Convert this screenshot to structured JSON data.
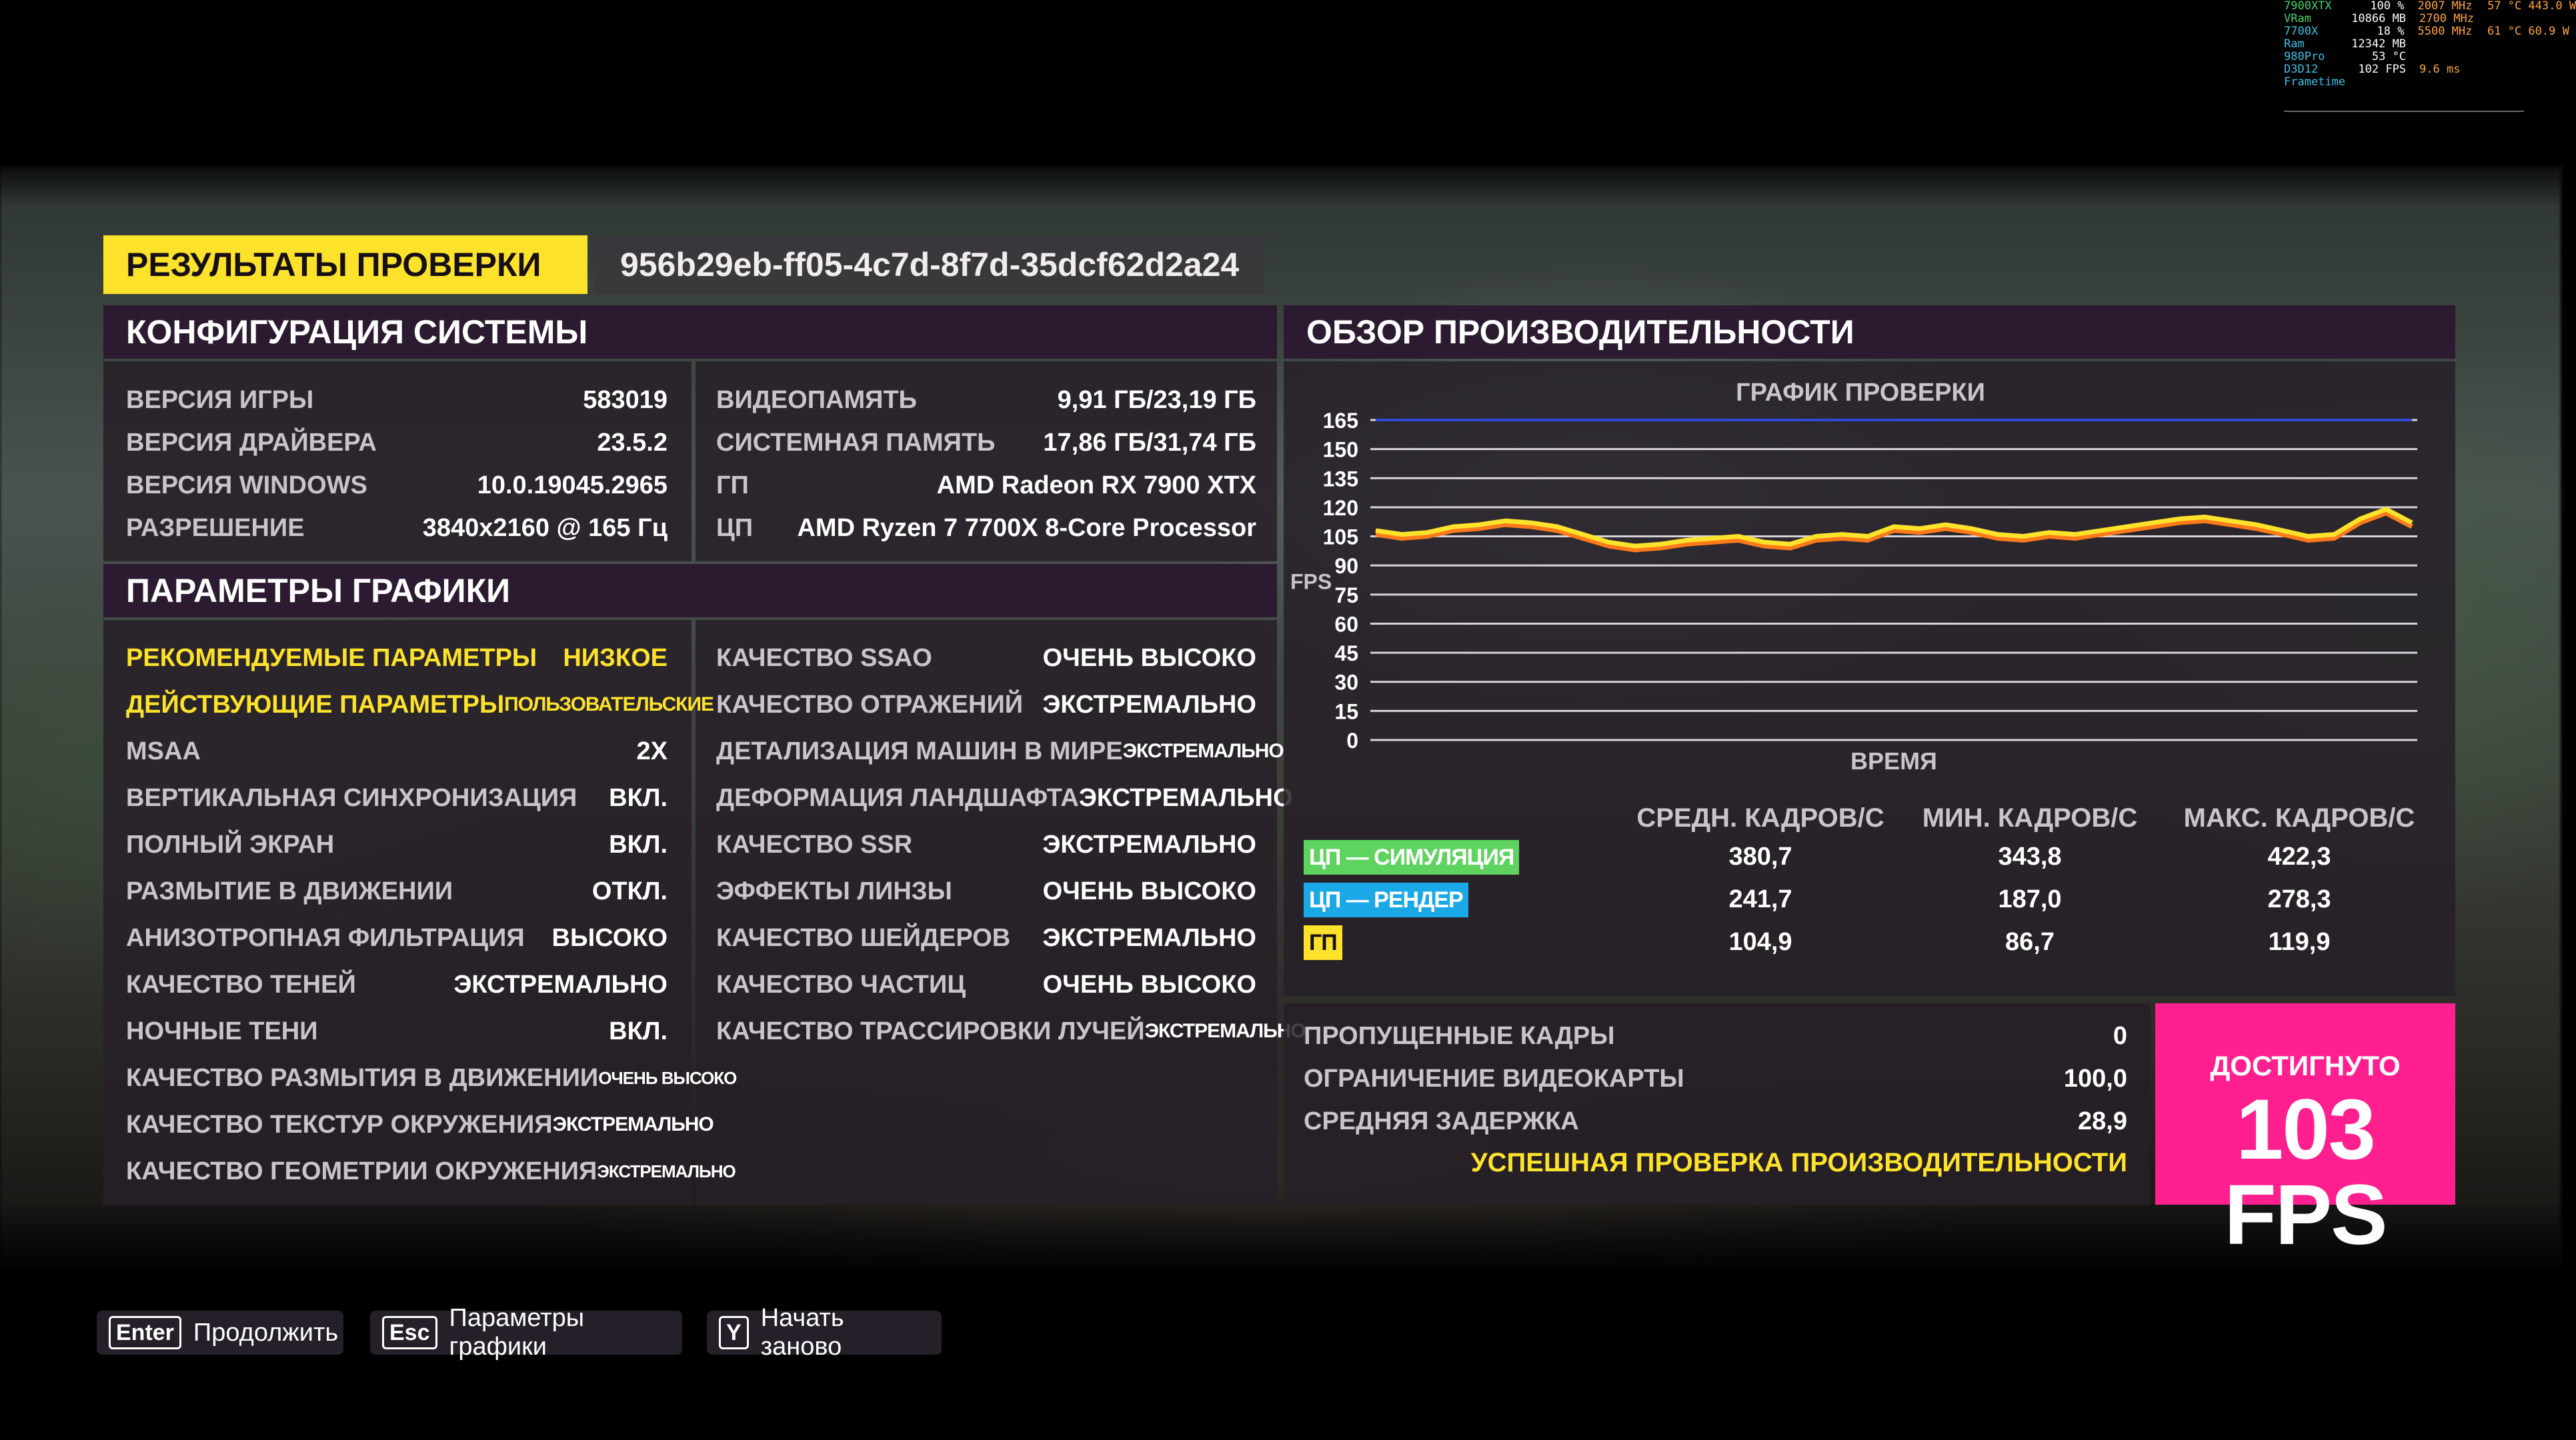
{
  "overlay": {
    "rows": [
      {
        "k": "7900XTX",
        "v": "100 %",
        "o1": "2007 MHz",
        "o2": "57 °C 443.0 W"
      },
      {
        "k": "VRam",
        "v": "10866 MB",
        "o1": "2700 MHz",
        "o2": ""
      },
      {
        "k": "7700X",
        "v": "18 %",
        "o1": "5500 MHz",
        "o2": "61 °C 60.9 W"
      },
      {
        "k": "Ram",
        "v": "12342 MB",
        "o1": "",
        "o2": ""
      },
      {
        "k": "980Pro",
        "v": "53 °C",
        "o1": "",
        "o2": ""
      },
      {
        "k": "D3D12",
        "v": "102 FPS",
        "o1": "9.6 ms",
        "o2": ""
      },
      {
        "k": "Frametime",
        "v": "",
        "o1": "",
        "o2": ""
      }
    ]
  },
  "header": {
    "title": "РЕЗУЛЬТАТЫ ПРОВЕРКИ",
    "run_id": "956b29eb-ff05-4c7d-8f7d-35dcf62d2a24"
  },
  "system": {
    "title": "КОНФИГУРАЦИЯ СИСТЕМЫ",
    "left": [
      {
        "label": "ВЕРСИЯ ИГРЫ",
        "value": "583019"
      },
      {
        "label": "ВЕРСИЯ ДРАЙВЕРА",
        "value": "23.5.2"
      },
      {
        "label": "ВЕРСИЯ WINDOWS",
        "value": "10.0.19045.2965"
      },
      {
        "label": "РАЗРЕШЕНИЕ",
        "value": "3840x2160 @ 165 Гц"
      }
    ],
    "right": [
      {
        "label": "ВИДЕОПАМЯТЬ",
        "value": "9,91 ГБ/23,19 ГБ"
      },
      {
        "label": "СИСТЕМНАЯ ПАМЯТЬ",
        "value": "17,86 ГБ/31,74 ГБ"
      },
      {
        "label": "ГП",
        "value": "AMD Radeon RX 7900 XTX"
      },
      {
        "label": "ЦП",
        "value": "AMD Ryzen 7 7700X 8-Core Processor"
      }
    ]
  },
  "graphics": {
    "title": "ПАРАМЕТРЫ ГРАФИКИ",
    "left": [
      {
        "label": "РЕКОМЕНДУЕМЫЕ ПАРАМЕТРЫ",
        "value": "НИЗКОЕ"
      },
      {
        "label": "ДЕЙСТВУЮЩИЕ ПАРАМЕТРЫ",
        "value": "ПОЛЬЗОВАТЕЛЬСКИЕ"
      },
      {
        "label": "MSAA",
        "value": "2X"
      },
      {
        "label": "ВЕРТИКАЛЬНАЯ СИНХРОНИЗАЦИЯ",
        "value": "ВКЛ."
      },
      {
        "label": "ПОЛНЫЙ ЭКРАН",
        "value": "ВКЛ."
      },
      {
        "label": "РАЗМЫТИЕ В ДВИЖЕНИИ",
        "value": "ОТКЛ."
      },
      {
        "label": "АНИЗОТРОПНАЯ ФИЛЬТРАЦИЯ",
        "value": "ВЫСОКО"
      },
      {
        "label": "КАЧЕСТВО ТЕНЕЙ",
        "value": "ЭКСТРЕМАЛЬНО"
      },
      {
        "label": "НОЧНЫЕ ТЕНИ",
        "value": "ВКЛ."
      },
      {
        "label": "КАЧЕСТВО РАЗМЫТИЯ В ДВИЖЕНИИ",
        "value": "ОЧЕНЬ ВЫСОКО"
      },
      {
        "label": "КАЧЕСТВО ТЕКСТУР ОКРУЖЕНИЯ",
        "value": "ЭКСТРЕМАЛЬНО"
      },
      {
        "label": "КАЧЕСТВО ГЕОМЕТРИИ ОКРУЖЕНИЯ",
        "value": "ЭКСТРЕМАЛЬНО"
      }
    ],
    "right": [
      {
        "label": "КАЧЕСТВО SSAO",
        "value": "ОЧЕНЬ ВЫСОКО"
      },
      {
        "label": "КАЧЕСТВО ОТРАЖЕНИЙ",
        "value": "ЭКСТРЕМАЛЬНО"
      },
      {
        "label": "ДЕТАЛИЗАЦИЯ МАШИН В МИРЕ",
        "value": "ЭКСТРЕМАЛЬНО"
      },
      {
        "label": "ДЕФОРМАЦИЯ ЛАНДШАФТА",
        "value": "ЭКСТРЕМАЛЬНО"
      },
      {
        "label": "КАЧЕСТВО SSR",
        "value": "ЭКСТРЕМАЛЬНО"
      },
      {
        "label": "ЭФФЕКТЫ ЛИНЗЫ",
        "value": "ОЧЕНЬ ВЫСОКО"
      },
      {
        "label": "КАЧЕСТВО ШЕЙДЕРОВ",
        "value": "ЭКСТРЕМАЛЬНО"
      },
      {
        "label": "КАЧЕСТВО ЧАСТИЦ",
        "value": "ОЧЕНЬ ВЫСОКО"
      },
      {
        "label": "КАЧЕСТВО ТРАССИРОВКИ ЛУЧЕЙ",
        "value": "ЭКСТРЕМАЛЬНО"
      }
    ]
  },
  "performance": {
    "title": "ОБЗОР ПРОИЗВОДИТЕЛЬНОСТИ",
    "chart_title": "ГРАФИК ПРОВЕРКИ",
    "stat_headers": [
      "СРЕДН. КАДРОВ/С",
      "МИН. КАДРОВ/С",
      "МАКС. КАДРОВ/С"
    ],
    "stats": [
      {
        "name": "ЦП — СИМУЛЯЦИЯ",
        "color": "#5fd35f",
        "avg": "380,7",
        "min": "343,8",
        "max": "422,3"
      },
      {
        "name": "ЦП — РЕНДЕР",
        "color": "#1aa8e6",
        "avg": "241,7",
        "min": "187,0",
        "max": "278,3"
      },
      {
        "name": "ГП",
        "color": "#fde22b",
        "avg": "104,9",
        "min": "86,7",
        "max": "119,9"
      }
    ],
    "summary": [
      {
        "label": "ПРОПУЩЕННЫЕ КАДРЫ",
        "value": "0"
      },
      {
        "label": "ОГРАНИЧЕНИЕ ВИДЕОКАРТЫ",
        "value": "100,0"
      },
      {
        "label": "СРЕДНЯЯ ЗАДЕРЖКА",
        "value": "28,9"
      }
    ],
    "success_text": "УСПЕШНАЯ ПРОВЕРКА ПРОИЗВОДИТЕЛЬНОСТИ",
    "achieved_label": "ДОСТИГНУТО",
    "achieved_value": "103 FPS"
  },
  "chart_data": {
    "type": "line",
    "title": "ГРАФИК ПРОВЕРКИ",
    "xlabel": "ВРЕМЯ",
    "ylabel": "FPS",
    "ylim": [
      0,
      165
    ],
    "yticks": [
      0,
      15,
      30,
      45,
      60,
      75,
      90,
      105,
      120,
      135,
      150,
      165
    ],
    "grid": true,
    "series": [
      {
        "color": "#2c4bd8",
        "values": [
          165,
          165,
          165,
          165,
          165,
          165,
          165,
          165,
          165,
          165,
          165,
          165,
          165,
          165,
          165,
          165,
          165,
          165,
          165,
          165,
          165,
          165,
          165,
          165,
          165,
          165,
          165,
          165,
          165,
          165,
          165,
          165,
          165,
          165,
          165,
          165,
          165,
          165,
          165,
          165,
          165
        ]
      },
      {
        "color": "#ff7a1a",
        "values": [
          106,
          104,
          105,
          108,
          109,
          111,
          110,
          108,
          104,
          100,
          98,
          99,
          101,
          102,
          103,
          100,
          99,
          103,
          104,
          103,
          108,
          107,
          109,
          107,
          104,
          103,
          105,
          104,
          106,
          108,
          110,
          112,
          113,
          111,
          109,
          106,
          103,
          104,
          112,
          117,
          110
        ]
      },
      {
        "color": "#fde22b",
        "values": [
          108,
          106,
          107,
          110,
          111,
          113,
          112,
          110,
          106,
          102,
          100,
          101,
          103,
          104,
          105,
          102,
          101,
          105,
          106,
          105,
          110,
          109,
          111,
          109,
          106,
          105,
          107,
          106,
          108,
          110,
          112,
          114,
          115,
          113,
          111,
          108,
          105,
          106,
          114,
          119,
          112
        ]
      }
    ]
  },
  "buttons": [
    {
      "key": "Enter",
      "label": "Продолжить"
    },
    {
      "key": "Esc",
      "label": "Параметры графики"
    },
    {
      "key": "Y",
      "label": "Начать заново"
    }
  ]
}
